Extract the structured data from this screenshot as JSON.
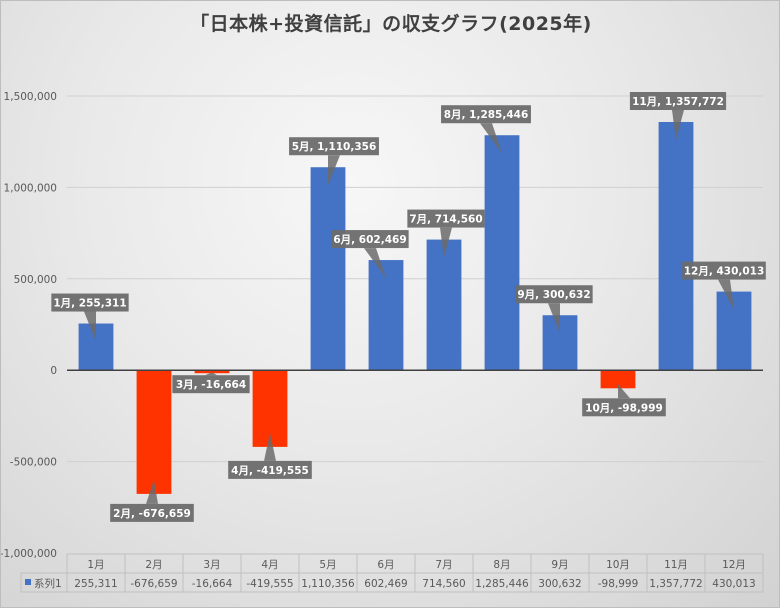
{
  "chart_data": {
    "type": "bar",
    "title": "「日本株+投資信託」の収支グラフ(2025年)",
    "xlabel": "",
    "ylabel": "",
    "ylim": [
      -1000000,
      1500000
    ],
    "yticks": [
      1500000,
      1000000,
      500000,
      0,
      -500000,
      -1000000
    ],
    "ytick_labels": [
      "1,500,000",
      "1,000,000",
      "500,000",
      "0",
      "-500,000",
      "-1,000,000"
    ],
    "grid": true,
    "categories": [
      "1月",
      "2月",
      "3月",
      "4月",
      "5月",
      "6月",
      "7月",
      "8月",
      "9月",
      "10月",
      "11月",
      "12月"
    ],
    "series": [
      {
        "name": "系列1",
        "values": [
          255311,
          -676659,
          -16664,
          -419555,
          1110356,
          602469,
          714560,
          1285446,
          300632,
          -98999,
          1357772,
          430013
        ],
        "value_labels": [
          "255,311",
          "-676,659",
          "-16,664",
          "-419,555",
          "1,110,356",
          "602,469",
          "714,560",
          "1,285,446",
          "300,632",
          "-98,999",
          "1,357,772",
          "430,013"
        ],
        "data_labels": [
          "1月, 255,311",
          "2月, -676,659",
          "3月, -16,664",
          "4月, -419,555",
          "5月, 1,110,356",
          "6月, 602,469",
          "7月, 714,560",
          "8月, 1,285,446",
          "9月, 300,632",
          "10月, -98,999",
          "11月, 1,357,772",
          "12月, 430,013"
        ]
      }
    ],
    "data_table": true,
    "legend": "data-table",
    "colors": {
      "positive": "#4472c4",
      "negative": "#ff3300",
      "label_bg": "#6b6b6b",
      "gridline": "#d0d0d0",
      "axis": "#404040"
    }
  }
}
